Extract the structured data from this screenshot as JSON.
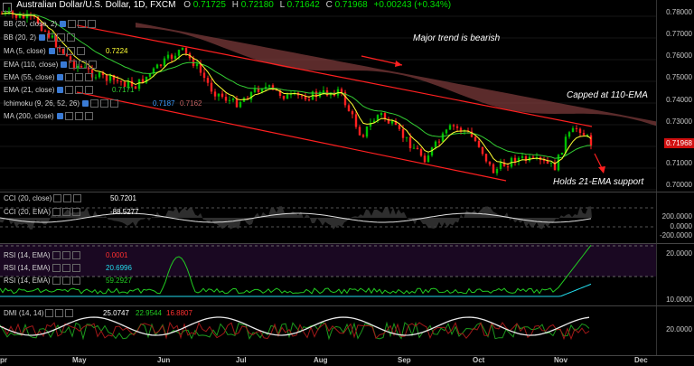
{
  "header": {
    "title": "Australian Dollar/U.S. Dollar, 1D, FXCM",
    "o_label": "O",
    "o_value": "0.71725",
    "h_label": "H",
    "h_value": "0.72180",
    "l_label": "L",
    "l_value": "0.71642",
    "c_label": "C",
    "c_value": "0.71968",
    "change": "+0.00243 (+0.34%)"
  },
  "main_legend": [
    {
      "label": "BB (20, close, 2)",
      "value": ""
    },
    {
      "label": "BB (20, 2)",
      "value": ""
    },
    {
      "label": "MA (5, close)",
      "value": "0.7224"
    },
    {
      "label": "EMA (110, close)",
      "value": ""
    },
    {
      "label": "EMA (55, close)",
      "value": ""
    },
    {
      "label": "EMA (21, close)",
      "value": "0.7171"
    },
    {
      "label": "Ichimoku (9, 26, 52, 26)",
      "value": "0.7187",
      "value2": "0.7162"
    },
    {
      "label": "MA (200, close)",
      "value": ""
    }
  ],
  "main_axis": [
    "0.78000",
    "0.77000",
    "0.76000",
    "0.75000",
    "0.74000",
    "0.73000",
    "0.72000",
    "0.71000",
    "0.70000"
  ],
  "price_tag": "0.71968",
  "annotations": {
    "trend": "Major trend is bearish",
    "capped": "Capped at 110-EMA",
    "holds": "Holds 21-EMA support"
  },
  "cci_legend": [
    {
      "label": "CCI (20, close)",
      "value": "50.7201"
    },
    {
      "label": "CCI (20, EMA)",
      "value": "-88.5277"
    }
  ],
  "cci_axis": [
    "200.0000",
    "0.0000",
    "-200.0000"
  ],
  "rsi_legend": [
    {
      "label": "RSI (14, EMA)",
      "value": "0.0001"
    },
    {
      "label": "RSI (14, EMA)",
      "value": "20.6996"
    },
    {
      "label": "RSI (14, EMA)",
      "value": "59.2927"
    }
  ],
  "rsi_axis": [
    "20.0000",
    "10.0000"
  ],
  "dmi_legend": {
    "label": "DMI (14, 14)",
    "v1": "25.0747",
    "v2": "22.9544",
    "v3": "16.8807"
  },
  "dmi_axis": [
    "20.0000"
  ],
  "x_axis": [
    "pr",
    "May",
    "Jun",
    "Jul",
    "Aug",
    "Sep",
    "Oct",
    "Nov",
    "Dec"
  ],
  "colors": {
    "up": "#00c000",
    "down": "#ff2020",
    "cloud": "#7a3a3a",
    "ema21": "#ffff33",
    "ema55": "#33cc33",
    "trend": "#ff2020",
    "cci": "#e0e0e0",
    "rsi_green": "#22cc22",
    "rsi_cyan": "#22ddee",
    "rsi_bg": "#1a0822"
  },
  "icons": [
    "gear-icon",
    "eye-icon",
    "settings-icon",
    "close-icon"
  ]
}
